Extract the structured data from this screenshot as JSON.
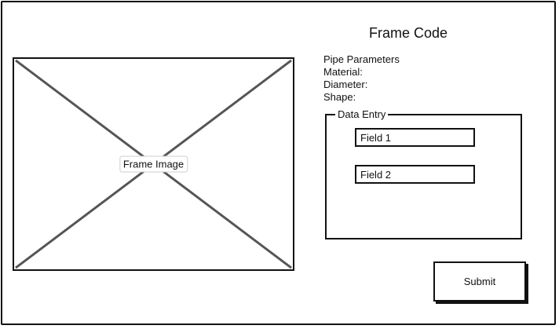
{
  "header": {
    "title": "Frame Code"
  },
  "image_panel": {
    "label": "Frame Image"
  },
  "pipe_parameters": {
    "heading": "Pipe Parameters",
    "material_label": "Material:",
    "diameter_label": "Diameter:",
    "shape_label": "Shape:"
  },
  "data_entry": {
    "legend": "Data Entry",
    "field_1_placeholder": "Field 1",
    "field_2_placeholder": "Field 2"
  },
  "actions": {
    "submit_label": "Submit"
  },
  "colors": {
    "stroke": "#111111",
    "background": "#ffffff",
    "cross_lines": "#555555"
  }
}
